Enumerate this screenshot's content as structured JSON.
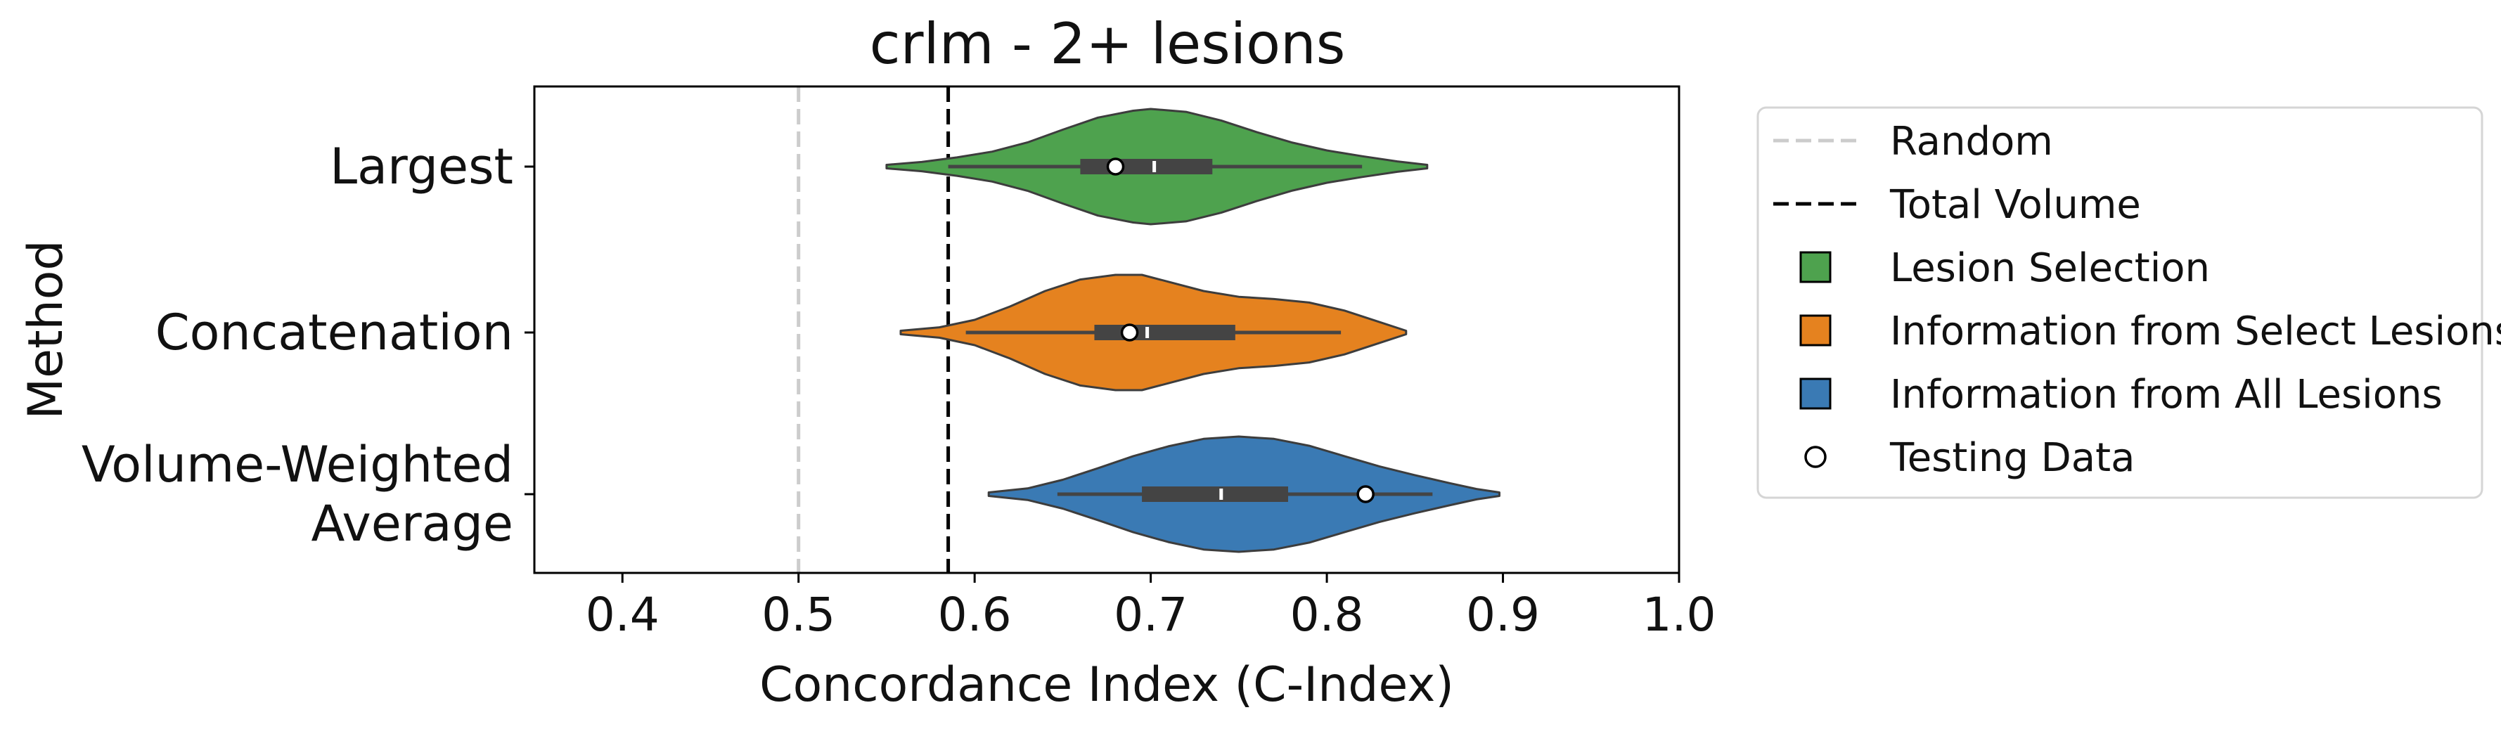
{
  "chart_data": {
    "type": "violin",
    "title": "crlm - 2+ lesions",
    "xlabel": "Concordance Index (C-Index)",
    "ylabel": "Method",
    "xlim": [
      0.35,
      1.0
    ],
    "xticks": [
      "0.4",
      "0.5",
      "0.6",
      "0.7",
      "0.8",
      "0.9",
      "1.0"
    ],
    "categories": [
      "Largest",
      "Concatenation",
      "Volume-Weighted Average"
    ],
    "category_lines": [
      [
        "Largest"
      ],
      [
        "Concatenation"
      ],
      [
        "Volume-Weighted",
        "Average"
      ]
    ],
    "reference_lines": [
      {
        "name": "Random",
        "x": 0.5,
        "color": "#cccccc",
        "style": "dashed"
      },
      {
        "name": "Total Volume",
        "x": 0.585,
        "color": "#000000",
        "style": "dashed"
      }
    ],
    "series": [
      {
        "category": "Largest",
        "legend": "Lesion Selection",
        "color": "#4ea24e",
        "min": 0.55,
        "max": 0.857,
        "whisker_low": 0.585,
        "whisker_high": 0.82,
        "q1": 0.66,
        "median": 0.702,
        "q3": 0.735,
        "testing": 0.68,
        "density": [
          [
            0.55,
            0.03
          ],
          [
            0.57,
            0.08
          ],
          [
            0.59,
            0.16
          ],
          [
            0.61,
            0.26
          ],
          [
            0.63,
            0.42
          ],
          [
            0.65,
            0.64
          ],
          [
            0.67,
            0.85
          ],
          [
            0.69,
            0.97
          ],
          [
            0.7,
            1.0
          ],
          [
            0.72,
            0.95
          ],
          [
            0.74,
            0.8
          ],
          [
            0.76,
            0.6
          ],
          [
            0.78,
            0.42
          ],
          [
            0.8,
            0.28
          ],
          [
            0.82,
            0.18
          ],
          [
            0.84,
            0.09
          ],
          [
            0.857,
            0.03
          ]
        ]
      },
      {
        "category": "Concatenation",
        "legend": "Information from Select Lesions",
        "color": "#e5821f",
        "min": 0.558,
        "max": 0.845,
        "whisker_low": 0.595,
        "whisker_high": 0.808,
        "q1": 0.668,
        "median": 0.698,
        "q3": 0.748,
        "testing": 0.688,
        "density": [
          [
            0.558,
            0.03
          ],
          [
            0.58,
            0.09
          ],
          [
            0.6,
            0.22
          ],
          [
            0.62,
            0.45
          ],
          [
            0.64,
            0.72
          ],
          [
            0.66,
            0.92
          ],
          [
            0.68,
            1.0
          ],
          [
            0.695,
            1.0
          ],
          [
            0.71,
            0.88
          ],
          [
            0.73,
            0.72
          ],
          [
            0.75,
            0.62
          ],
          [
            0.77,
            0.58
          ],
          [
            0.79,
            0.52
          ],
          [
            0.81,
            0.38
          ],
          [
            0.83,
            0.18
          ],
          [
            0.845,
            0.03
          ]
        ]
      },
      {
        "category": "Volume-Weighted Average",
        "legend": "Information from All Lesions",
        "color": "#3a7ab4",
        "min": 0.608,
        "max": 0.898,
        "whisker_low": 0.647,
        "whisker_high": 0.86,
        "q1": 0.695,
        "median": 0.74,
        "q3": 0.778,
        "testing": 0.822,
        "density": [
          [
            0.608,
            0.03
          ],
          [
            0.63,
            0.1
          ],
          [
            0.65,
            0.25
          ],
          [
            0.67,
            0.45
          ],
          [
            0.69,
            0.66
          ],
          [
            0.71,
            0.83
          ],
          [
            0.73,
            0.96
          ],
          [
            0.75,
            1.0
          ],
          [
            0.77,
            0.96
          ],
          [
            0.79,
            0.84
          ],
          [
            0.81,
            0.66
          ],
          [
            0.83,
            0.48
          ],
          [
            0.85,
            0.33
          ],
          [
            0.87,
            0.19
          ],
          [
            0.885,
            0.09
          ],
          [
            0.898,
            0.03
          ]
        ]
      }
    ],
    "legend": {
      "position": "right, outside plot",
      "entries": [
        {
          "label": "Random",
          "kind": "dashed-line",
          "color": "#cccccc"
        },
        {
          "label": "Total Volume",
          "kind": "dashed-line",
          "color": "#000000"
        },
        {
          "label": "Lesion Selection",
          "kind": "square",
          "color": "#4ea24e"
        },
        {
          "label": "Information from Select Lesions",
          "kind": "square",
          "color": "#e5821f"
        },
        {
          "label": "Information from All Lesions",
          "kind": "square",
          "color": "#3a7ab4"
        },
        {
          "label": "Testing Data",
          "kind": "circle",
          "color": "#ffffff"
        }
      ]
    },
    "grid": false
  }
}
